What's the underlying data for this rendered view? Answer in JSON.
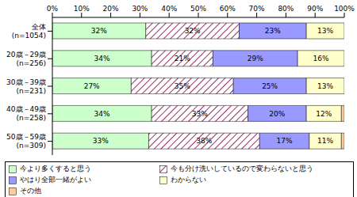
{
  "chart_data": {
    "type": "bar",
    "orientation": "horizontal",
    "stacked": true,
    "grid": false,
    "legend": "bottom",
    "categories": [
      "全体\n(n=1054)",
      "20歳－29歳\n(n=256)",
      "30歳－39歳\n(n=231)",
      "40歳－49歳\n(n=258)",
      "50歳－59歳\n(n=309)"
    ],
    "xlim": [
      0,
      100
    ],
    "xticks": [
      {
        "value": 0,
        "label": "0%"
      },
      {
        "value": 10,
        "label": "10%"
      },
      {
        "value": 20,
        "label": "20%"
      },
      {
        "value": 30,
        "label": "30%"
      },
      {
        "value": 40,
        "label": "40%"
      },
      {
        "value": 50,
        "label": "50%"
      },
      {
        "value": 60,
        "label": "60%"
      },
      {
        "value": 70,
        "label": "70%"
      },
      {
        "value": 80,
        "label": "80%"
      },
      {
        "value": 90,
        "label": "90%"
      },
      {
        "value": 100,
        "label": "100%"
      }
    ],
    "series": [
      {
        "name": "今より多くすると思う",
        "color": "#ccffcc",
        "data_labels": true,
        "values": [
          32,
          34,
          27,
          34,
          33
        ],
        "value_labels": [
          "32%",
          "34%",
          "27%",
          "34%",
          "33%"
        ]
      },
      {
        "name": "今も分け洗いしているので変わらないと思う",
        "color": "#993366",
        "data_labels": true,
        "values": [
          32,
          21,
          35,
          33,
          38
        ],
        "value_labels": [
          "32%",
          "21%",
          "35%",
          "33%",
          "38%"
        ]
      },
      {
        "name": "やはり全部一緒がよい",
        "color": "#9999ff",
        "data_labels": true,
        "values": [
          23,
          29,
          25,
          20,
          17
        ],
        "value_labels": [
          "23%",
          "29%",
          "25%",
          "20%",
          "17%"
        ]
      },
      {
        "name": "わからない",
        "color": "#ffffcc",
        "data_labels": true,
        "values": [
          13,
          16,
          13,
          12,
          11
        ],
        "value_labels": [
          "13%",
          "16%",
          "13%",
          "12%",
          "11%"
        ]
      },
      {
        "name": "その他",
        "color": "#ffcc99",
        "data_labels": false,
        "values": [
          0,
          0,
          0,
          1,
          1
        ]
      }
    ]
  }
}
